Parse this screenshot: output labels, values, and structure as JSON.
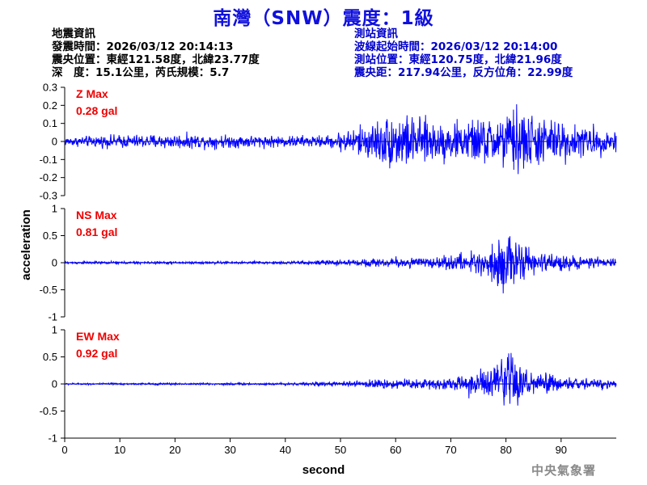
{
  "header": {
    "title": "南灣（SNW）震度：1級"
  },
  "quake_info": {
    "heading": "地震資訊",
    "origin_time": "發震時間：2026/03/12 20:14:13",
    "epicenter": "震央位置：東經121.58度，北緯23.77度",
    "depth_magnitude": "深　度：15.1公里，芮氏規模：5.7"
  },
  "station_info": {
    "heading": "測站資訊",
    "wave_start": "波線起始時間：2026/03/12 20:14:00",
    "location": "測站位置：東經120.75度，北緯21.96度",
    "distance_azimuth": "震央距：217.94公里，反方位角：22.99度"
  },
  "footer": {
    "agency": "中央氣象署"
  },
  "colors": {
    "trace": "#0000ff",
    "max_label": "#ee0000",
    "title": "#1010dd",
    "station_text": "#0000cc",
    "agency": "#8a8a8a"
  },
  "chart_data": [
    {
      "type": "line",
      "channel": "Z",
      "max_label": "Z Max",
      "max_value_label": "0.28 gal",
      "ylim": [
        -0.3,
        0.3
      ],
      "yticks": [
        -0.3,
        -0.2,
        -0.1,
        0,
        0.1,
        0.2,
        0.3
      ],
      "ytick_labels": [
        "-0.3",
        "-0.2",
        "-0.1",
        "0",
        "0.1",
        "0.2",
        "0.3"
      ],
      "x_range": [
        0,
        100
      ],
      "envelope": {
        "x": [
          0,
          10,
          20,
          30,
          40,
          48,
          50,
          55,
          60,
          65,
          70,
          75,
          80,
          82,
          85,
          90,
          95,
          100
        ],
        "amplitude": [
          0.03,
          0.045,
          0.05,
          0.045,
          0.04,
          0.04,
          0.07,
          0.12,
          0.2,
          0.15,
          0.13,
          0.15,
          0.19,
          0.25,
          0.18,
          0.14,
          0.1,
          0.08
        ]
      }
    },
    {
      "type": "line",
      "channel": "NS",
      "max_label": "NS Max",
      "max_value_label": "0.81 gal",
      "ylim": [
        -1,
        1
      ],
      "yticks": [
        -1,
        -0.5,
        0,
        0.5,
        1
      ],
      "ytick_labels": [
        "-1",
        "-0.5",
        "0",
        "0.5",
        "1"
      ],
      "x_range": [
        0,
        100
      ],
      "envelope": {
        "x": [
          0,
          20,
          40,
          50,
          55,
          60,
          65,
          70,
          75,
          78,
          80,
          82,
          85,
          90,
          95,
          100
        ],
        "amplitude": [
          0.03,
          0.03,
          0.035,
          0.06,
          0.09,
          0.12,
          0.13,
          0.15,
          0.3,
          0.45,
          0.72,
          0.45,
          0.25,
          0.18,
          0.12,
          0.1
        ]
      }
    },
    {
      "type": "line",
      "channel": "EW",
      "max_label": "EW Max",
      "max_value_label": "0.92 gal",
      "ylim": [
        -1,
        1
      ],
      "yticks": [
        -1,
        -0.5,
        0,
        0.5,
        1
      ],
      "ytick_labels": [
        "-1",
        "-0.5",
        "0",
        "0.5",
        "1"
      ],
      "x_range": [
        0,
        100
      ],
      "envelope": {
        "x": [
          0,
          20,
          40,
          50,
          55,
          60,
          65,
          70,
          75,
          78,
          80,
          82,
          85,
          90,
          95,
          100
        ],
        "amplitude": [
          0.02,
          0.025,
          0.03,
          0.05,
          0.09,
          0.12,
          0.12,
          0.15,
          0.3,
          0.45,
          0.85,
          0.5,
          0.28,
          0.18,
          0.12,
          0.1
        ]
      }
    }
  ],
  "axes": {
    "xlabel": "second",
    "ylabel": "acceleration",
    "xticks": [
      0,
      10,
      20,
      30,
      40,
      50,
      60,
      70,
      80,
      90
    ],
    "xtick_labels": [
      "0",
      "10",
      "20",
      "30",
      "40",
      "50",
      "60",
      "70",
      "80",
      "90"
    ],
    "xlim": [
      0,
      100
    ]
  }
}
